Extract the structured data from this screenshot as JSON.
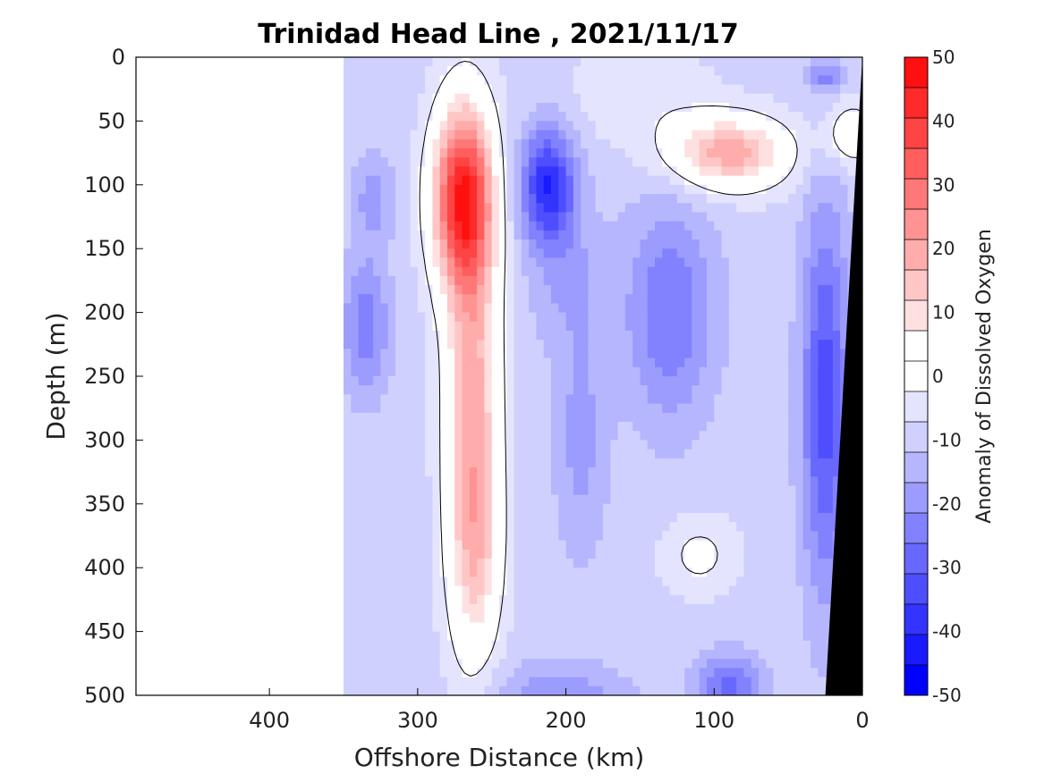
{
  "chart_data": {
    "type": "heatmap",
    "title": "Trinidad Head Line , 2021/11/17",
    "xlabel": "Offshore Distance (km)",
    "ylabel": "Depth (m)",
    "xlim": [
      490,
      0
    ],
    "ylim": [
      0,
      500
    ],
    "x_ticks": [
      400,
      300,
      200,
      100,
      0
    ],
    "y_ticks": [
      0,
      50,
      100,
      150,
      200,
      250,
      300,
      350,
      400,
      450,
      500
    ],
    "x_reversed": true,
    "y_reversed": true,
    "data_start_km": 350,
    "colorbar": {
      "label": "Anomaly of Dissolved Oxygen",
      "range": [
        -50,
        50
      ],
      "step": 5,
      "ticks": [
        50,
        40,
        30,
        20,
        10,
        0,
        -10,
        -20,
        -30,
        -40,
        -50
      ],
      "colors": [
        "#0000ff",
        "#1a1aff",
        "#3434ff",
        "#4e4eff",
        "#6868ff",
        "#8282ff",
        "#9c9cff",
        "#b6b6ff",
        "#d0d0ff",
        "#e4e4ff",
        "#ffffff",
        "#ffffff",
        "#ffe0e0",
        "#ffc6c6",
        "#ffacac",
        "#ff9292",
        "#ff7878",
        "#ff5e5e",
        "#ff4444",
        "#ff2a2a",
        "#ff1010"
      ]
    },
    "features": [
      {
        "name": "red core",
        "x_km": 268,
        "depth_m": 110,
        "value": 45
      },
      {
        "name": "red column",
        "x_km": 262,
        "depth_m": 300,
        "value": 25
      },
      {
        "name": "blue core",
        "x_km": 212,
        "depth_m": 100,
        "value": -35
      },
      {
        "name": "red lens",
        "x_km": 90,
        "depth_m": 75,
        "value": 20
      },
      {
        "name": "coastal blue",
        "x_km": 25,
        "depth_m": 250,
        "value": -30
      }
    ]
  }
}
